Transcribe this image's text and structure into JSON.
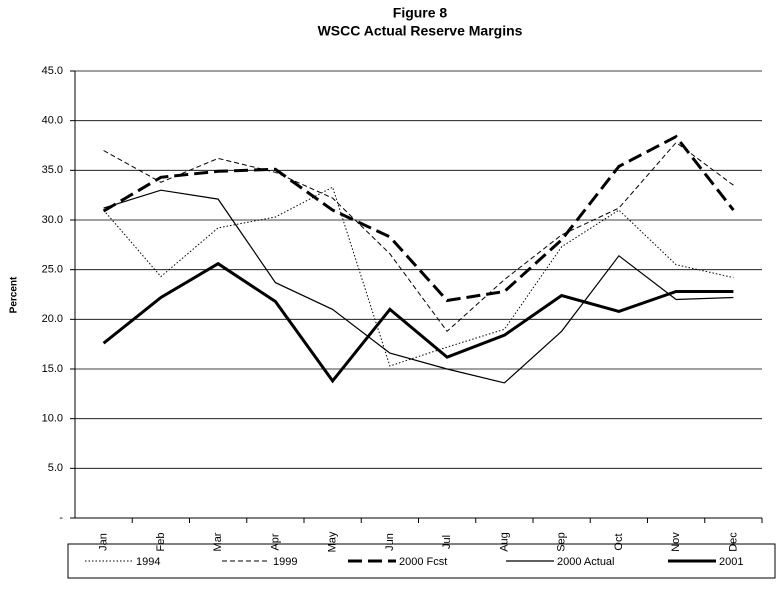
{
  "chart_data": {
    "type": "line",
    "title": "Figure 8",
    "subtitle": "WSCC Actual Reserve Margins",
    "y_label": "Percent",
    "categories": [
      "Jan",
      "Feb",
      "Mar",
      "Apr",
      "May",
      "Jun",
      "Jul",
      "Aug",
      "Sep",
      "Oct",
      "Nov",
      "Dec"
    ],
    "ylim": [
      0,
      45
    ],
    "yticks": [
      {
        "value": 0,
        "label": "-"
      },
      {
        "value": 5,
        "label": "5.0"
      },
      {
        "value": 10,
        "label": "10.0"
      },
      {
        "value": 15,
        "label": "15.0"
      },
      {
        "value": 20,
        "label": "20.0"
      },
      {
        "value": 25,
        "label": "25.0"
      },
      {
        "value": 30,
        "label": "30.0"
      },
      {
        "value": 35,
        "label": "35.0"
      },
      {
        "value": 40,
        "label": "40.0"
      },
      {
        "value": 45,
        "label": "45.0"
      }
    ],
    "grid": true,
    "legend": "bottom",
    "series": [
      {
        "name": "1994",
        "color": "#000000",
        "line_style": "dotted",
        "line_width": 1,
        "values": [
          31.0,
          24.3,
          29.2,
          30.3,
          33.3,
          15.3,
          17.2,
          19.0,
          27.3,
          31.0,
          25.5,
          24.2
        ]
      },
      {
        "name": "1999",
        "color": "#000000",
        "line_style": "dashed",
        "line_width": 1,
        "values": [
          37.0,
          33.8,
          36.2,
          34.8,
          32.2,
          26.6,
          18.8,
          24.0,
          28.5,
          31.2,
          37.8,
          33.5
        ]
      },
      {
        "name": "2000 Fcst",
        "color": "#000000",
        "line_style": "long-dashed",
        "line_width": 3,
        "values": [
          30.9,
          34.3,
          34.9,
          35.1,
          31.0,
          28.3,
          21.9,
          22.8,
          28.0,
          35.4,
          38.4,
          31.0
        ]
      },
      {
        "name": "2000 Actual",
        "color": "#000000",
        "line_style": "solid",
        "line_width": 1.2,
        "values": [
          31.2,
          33.0,
          32.1,
          23.7,
          21.0,
          16.6,
          15.0,
          13.6,
          18.8,
          26.4,
          22.0,
          22.2
        ]
      },
      {
        "name": "2001",
        "color": "#000000",
        "line_style": "solid",
        "line_width": 3,
        "values": [
          17.6,
          22.2,
          25.6,
          21.8,
          13.8,
          21.0,
          16.2,
          18.4,
          22.4,
          20.8,
          22.8,
          22.8
        ]
      }
    ]
  }
}
